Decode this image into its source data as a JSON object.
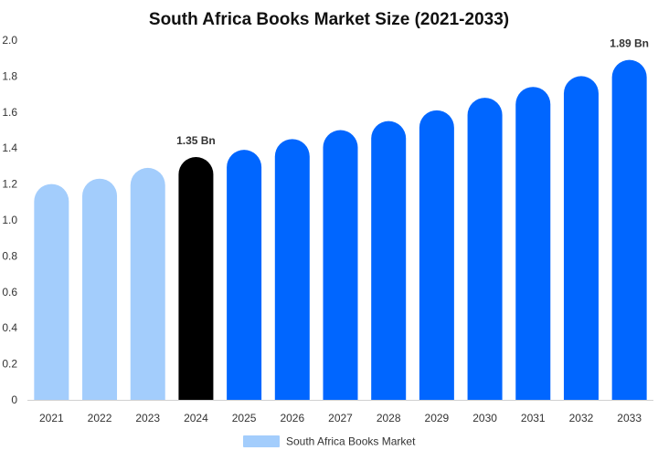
{
  "chart_data": {
    "type": "bar",
    "title": "South Africa Books Market Size (2021-2033)",
    "xlabel": "",
    "ylabel": "",
    "categories": [
      "2021",
      "2022",
      "2023",
      "2024",
      "2025",
      "2026",
      "2027",
      "2028",
      "2029",
      "2030",
      "2031",
      "2032",
      "2033"
    ],
    "series": [
      {
        "name": "South Africa Books Market",
        "values": [
          1.2,
          1.23,
          1.29,
          1.35,
          1.39,
          1.45,
          1.5,
          1.55,
          1.61,
          1.68,
          1.74,
          1.8,
          1.89
        ]
      }
    ],
    "ylim": [
      0,
      2.0
    ],
    "yticks": [
      "0",
      "0.2",
      "0.4",
      "0.6",
      "0.8",
      "1.0",
      "1.2",
      "1.4",
      "1.6",
      "1.8",
      "2.0"
    ],
    "ytick_values": [
      0,
      0.2,
      0.4,
      0.6,
      0.8,
      1.0,
      1.2,
      1.4,
      1.6,
      1.8,
      2.0
    ],
    "data_labels": [
      {
        "category": "2024",
        "text": "1.35 Bn"
      },
      {
        "category": "2033",
        "text": "1.89 Bn"
      }
    ],
    "bar_colors": {
      "historical": "#a3cdfc",
      "base_year": "#000000",
      "forecast": "#0066ff"
    },
    "historical_categories": [
      "2021",
      "2022",
      "2023"
    ],
    "base_year_category": "2024",
    "legend": {
      "label": "South Africa Books Market",
      "color": "#a3cdfc",
      "position": "bottom-center"
    },
    "grid": false
  }
}
